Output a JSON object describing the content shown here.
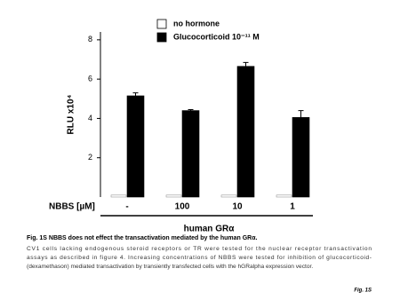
{
  "chart_data": {
    "type": "bar",
    "ylabel": "RLU x10⁴",
    "xlabel": "NBBS [µM]",
    "group_label": "human GRα",
    "categories": [
      "-",
      "100",
      "10",
      "1"
    ],
    "series": [
      {
        "name": "no hormone",
        "color": "#ffffff",
        "values": [
          0.1,
          0.1,
          0.1,
          0.1
        ]
      },
      {
        "name": "Glucocorticoid 10⁻¹¹ M",
        "color": "#000000",
        "values": [
          5.15,
          4.4,
          6.65,
          4.05
        ],
        "errors": [
          0.15,
          0.05,
          0.2,
          0.35
        ]
      }
    ],
    "ylim": [
      0,
      8.4
    ],
    "yticks": [
      2,
      4,
      6,
      8
    ]
  },
  "caption": {
    "title": "Fig. 1S NBBS does not effect the transactivation mediated by the human GRα.",
    "lines": [
      "CV1 cells lacking endogenous steroid receptors or TR were tested for the nuclear receptor transactivation",
      "assays as described in figure 4. Increasing concentrations of NBBS were tested for inhibition of glucocorticoid-",
      "(dexamethason) mediated transactivation by transiently transfected cells with the hGRalpha expression vector."
    ],
    "label": "Fig. 1S"
  }
}
